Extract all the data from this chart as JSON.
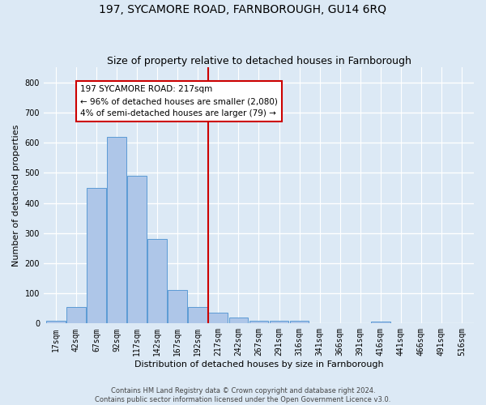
{
  "title": "197, SYCAMORE ROAD, FARNBOROUGH, GU14 6RQ",
  "subtitle": "Size of property relative to detached houses in Farnborough",
  "xlabel": "Distribution of detached houses by size in Farnborough",
  "ylabel": "Number of detached properties",
  "footer_line1": "Contains HM Land Registry data © Crown copyright and database right 2024.",
  "footer_line2": "Contains public sector information licensed under the Open Government Licence v3.0.",
  "bin_labels": [
    "17sqm",
    "42sqm",
    "67sqm",
    "92sqm",
    "117sqm",
    "142sqm",
    "167sqm",
    "192sqm",
    "217sqm",
    "242sqm",
    "267sqm",
    "291sqm",
    "316sqm",
    "341sqm",
    "366sqm",
    "391sqm",
    "416sqm",
    "441sqm",
    "466sqm",
    "491sqm",
    "516sqm"
  ],
  "bar_values": [
    10,
    55,
    450,
    620,
    490,
    280,
    110,
    55,
    35,
    20,
    10,
    8,
    8,
    0,
    0,
    0,
    5,
    0,
    0,
    0,
    0
  ],
  "bar_color": "#aec6e8",
  "bar_edge_color": "#5b9bd5",
  "marker_bin_index": 8,
  "marker_color": "#cc0000",
  "annotation_line1": "197 SYCAMORE ROAD: 217sqm",
  "annotation_line2": "← 96% of detached houses are smaller (2,080)",
  "annotation_line3": "4% of semi-detached houses are larger (79) →",
  "annotation_box_edge": "#cc0000",
  "ylim": [
    0,
    850
  ],
  "yticks": [
    0,
    100,
    200,
    300,
    400,
    500,
    600,
    700,
    800
  ],
  "plot_bg_color": "#dce9f5",
  "fig_bg_color": "#dce9f5",
  "grid_color": "#ffffff",
  "title_fontsize": 10,
  "subtitle_fontsize": 9,
  "axis_label_fontsize": 8,
  "tick_fontsize": 7,
  "annotation_fontsize": 7.5,
  "footer_fontsize": 6
}
